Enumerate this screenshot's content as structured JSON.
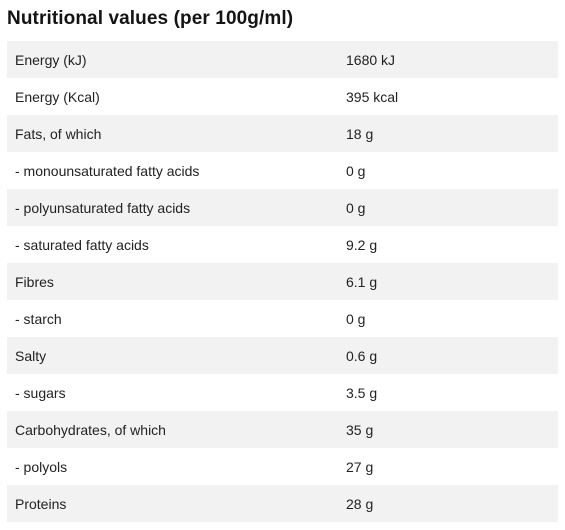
{
  "title": "Nutritional values (per 100g/ml)",
  "colors": {
    "row_shade": "#f2f2f2",
    "row_plain": "#ffffff",
    "text": "#222222"
  },
  "rows": [
    {
      "name": "Energy (kJ)",
      "value": "1680 kJ"
    },
    {
      "name": "Energy (Kcal)",
      "value": "395 kcal"
    },
    {
      "name": "Fats, of which",
      "value": "18 g"
    },
    {
      "name": "- monounsaturated fatty acids",
      "value": "0 g"
    },
    {
      "name": "- polyunsaturated fatty acids",
      "value": "0 g"
    },
    {
      "name": "- saturated fatty acids",
      "value": "9.2 g"
    },
    {
      "name": "Fibres",
      "value": "6.1 g"
    },
    {
      "name": "- starch",
      "value": "0 g"
    },
    {
      "name": "Salty",
      "value": "0.6 g"
    },
    {
      "name": "- sugars",
      "value": "3.5 g"
    },
    {
      "name": "Carbohydrates, of which",
      "value": "35 g"
    },
    {
      "name": "- polyols",
      "value": "27 g"
    },
    {
      "name": "Proteins",
      "value": "28 g"
    }
  ]
}
